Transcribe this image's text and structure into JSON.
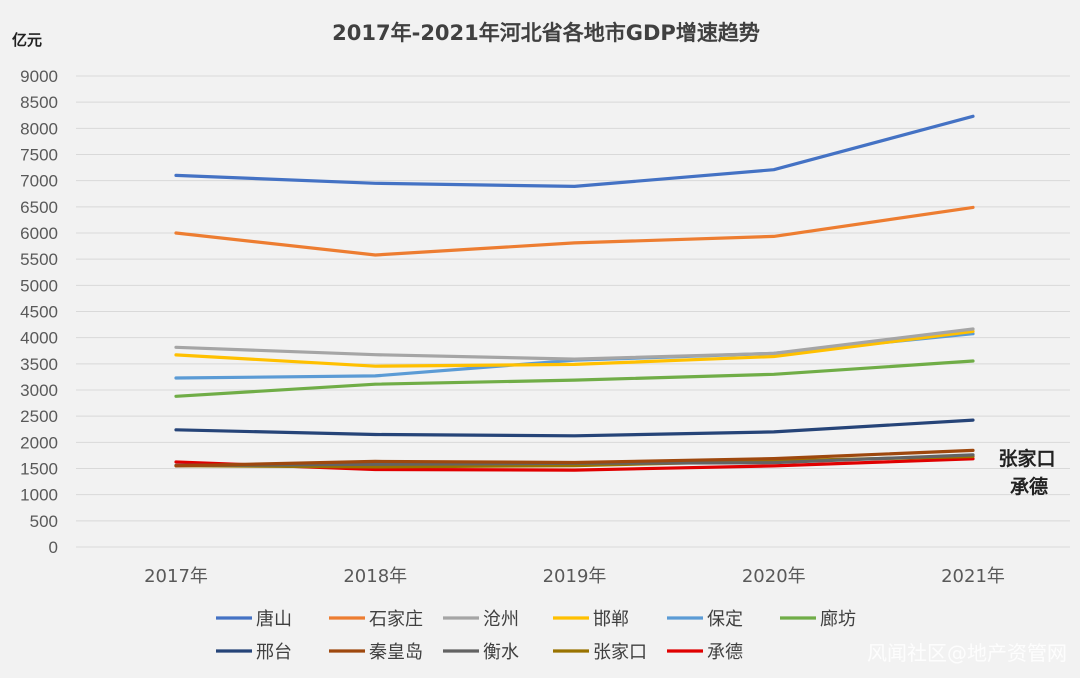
{
  "chart_data": {
    "type": "line",
    "title": "2017年-2021年河北省各地市GDP增速趋势",
    "ylabel": "亿元",
    "xlabel": "",
    "ylim": [
      0,
      9000
    ],
    "ystep": 500,
    "categories": [
      "2017年",
      "2018年",
      "2019年",
      "2020年",
      "2021年"
    ],
    "series": [
      {
        "name": "唐山",
        "color": "#4472c4",
        "values": [
          7100,
          6950,
          6890,
          7210,
          8230
        ]
      },
      {
        "name": "石家庄",
        "color": "#ed7d31",
        "values": [
          6000,
          5580,
          5810,
          5935,
          6490
        ]
      },
      {
        "name": "沧州",
        "color": "#a5a5a5",
        "values": [
          3815,
          3675,
          3590,
          3700,
          4165
        ]
      },
      {
        "name": "邯郸",
        "color": "#ffc000",
        "values": [
          3670,
          3455,
          3490,
          3640,
          4120
        ]
      },
      {
        "name": "保定",
        "color": "#5b9bd5",
        "values": [
          3230,
          3270,
          3570,
          3700,
          4075
        ]
      },
      {
        "name": "廊坊",
        "color": "#70ad47",
        "values": [
          2880,
          3110,
          3190,
          3300,
          3555
        ]
      },
      {
        "name": "邢台",
        "color": "#264478",
        "values": [
          2240,
          2150,
          2125,
          2200,
          2425
        ]
      },
      {
        "name": "秦皇岛",
        "color": "#9e480e",
        "values": [
          1550,
          1635,
          1615,
          1690,
          1845
        ]
      },
      {
        "name": "衡水",
        "color": "#636363",
        "values": [
          1560,
          1580,
          1600,
          1610,
          1760
        ]
      },
      {
        "name": "张家口",
        "color": "#997300",
        "values": [
          1555,
          1530,
          1555,
          1645,
          1730
        ]
      },
      {
        "name": "承德",
        "color": "#e00000",
        "values": [
          1625,
          1480,
          1470,
          1550,
          1685
        ]
      }
    ],
    "annotations": [
      "张家口",
      "承德"
    ]
  },
  "watermark": "风闻社区@地产资管网"
}
